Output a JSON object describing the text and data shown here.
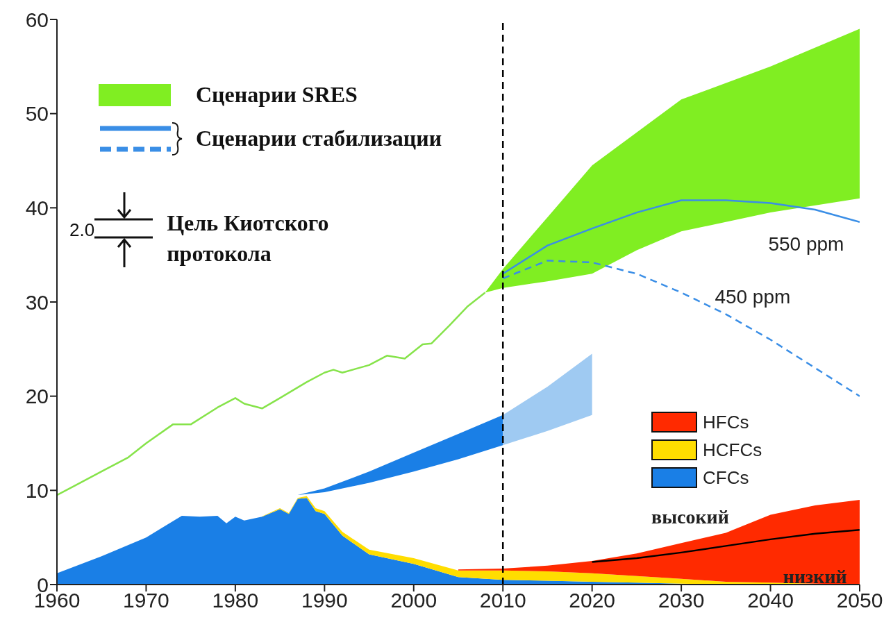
{
  "chart_data": {
    "type": "area",
    "stacked": true,
    "x": [
      1960,
      1965,
      1970,
      1974,
      1976,
      1978,
      1979,
      1980,
      1981,
      1983,
      1985,
      1986,
      1987,
      1988,
      1989,
      1990,
      1992,
      1995,
      2000,
      2005,
      2010,
      2015,
      2020,
      2025,
      2030,
      2035,
      2040,
      2045,
      2050
    ],
    "series": [
      {
        "name": "CFCs",
        "color": "#1a7fe6",
        "values": [
          1.2,
          3,
          5,
          7.3,
          7.2,
          7.3,
          6.5,
          7.2,
          6.8,
          7.2,
          8,
          7.5,
          9.1,
          9.2,
          7.8,
          7.5,
          5.2,
          3.2,
          2.2,
          0.8,
          0.5,
          0.4,
          0.3,
          0.2,
          0.1,
          0,
          0,
          0,
          0
        ]
      },
      {
        "name": "HCFCs",
        "color": "#ffdd00",
        "values": [
          null,
          null,
          null,
          null,
          null,
          null,
          null,
          null,
          null,
          0.05,
          0.1,
          0.1,
          0.1,
          0.2,
          0.3,
          0.3,
          0.4,
          0.5,
          0.6,
          0.7,
          1,
          1,
          0.9,
          0.7,
          0.5,
          0.3,
          0.2,
          0.1,
          0
        ]
      },
      {
        "name": "HFCs",
        "color": "#ff2a00",
        "values": [
          null,
          null,
          null,
          null,
          null,
          null,
          null,
          null,
          null,
          null,
          null,
          null,
          null,
          null,
          null,
          null,
          null,
          null,
          null,
          0.1,
          0.2,
          0.6,
          1.3,
          2.4,
          3.8,
          5.2,
          7.2,
          8.3,
          9
        ]
      },
      {
        "type": "line",
        "color": "#000000",
        "x": [
          2020,
          2025,
          2030,
          2035,
          2040,
          2045,
          2050
        ],
        "values": [
          2.4,
          2.8,
          3.4,
          4.1,
          4.8,
          5.4,
          5.8
        ]
      },
      {
        "type": "line",
        "color": "#86e34a",
        "x": [
          1960,
          1962,
          1965,
          1968,
          1970,
          1973,
          1975,
          1978,
          1980,
          1981,
          1983,
          1985,
          1988,
          1990,
          1991,
          1992,
          1995,
          1997,
          1999,
          2001,
          2002,
          2004,
          2006,
          2008
        ],
        "values": [
          9.5,
          10.5,
          12,
          13.5,
          15,
          17,
          17,
          18.8,
          19.8,
          19.2,
          18.7,
          19.8,
          21.5,
          22.5,
          22.8,
          22.5,
          23.3,
          24.3,
          24,
          25.5,
          25.6,
          27.5,
          29.5,
          31
        ]
      },
      {
        "name": "Сценарии SRES",
        "type": "line",
        "color": "#80ee22",
        "x": [
          2008,
          2010,
          2015,
          2020,
          2025,
          2030,
          2040,
          2050
        ],
        "values": [
          null,
          null,
          null,
          null,
          null,
          null,
          null,
          null
        ],
        "lower": [
          31,
          31.5,
          32.2,
          33,
          35.5,
          37.5,
          39.5,
          41
        ],
        "upper": [
          31,
          33.5,
          39,
          44.5,
          48,
          51.5,
          55,
          59
        ]
      },
      {
        "type": "line",
        "color": "#3a8ee6",
        "line_style": "solid",
        "x": [
          2010,
          2015,
          2020,
          2025,
          2030,
          2035,
          2040,
          2045,
          2050
        ],
        "values": [
          33,
          36,
          37.8,
          39.5,
          40.8,
          40.8,
          40.5,
          39.8,
          38.5
        ]
      },
      {
        "type": "line",
        "color": "#3a8ee6",
        "line_style": "dashed",
        "x": [
          2010,
          2015,
          2020,
          2025,
          2030,
          2035,
          2040,
          2045,
          2050
        ],
        "values": [
          32.5,
          34.4,
          34.2,
          33,
          31,
          28.7,
          26,
          23,
          20
        ]
      },
      {
        "type": "line",
        "color": "#1a7fe6",
        "x": [
          1987,
          1990,
          1995,
          2000,
          2005,
          2010
        ],
        "values": [
          null,
          null,
          null,
          null,
          null,
          null
        ],
        "lower": [
          9.5,
          9.8,
          10.8,
          12,
          13.3,
          14.8
        ],
        "upper": [
          9.5,
          10.2,
          12,
          14,
          16,
          18
        ]
      },
      {
        "type": "line",
        "color": "#9fcaf2",
        "x": [
          2010,
          2015,
          2020
        ],
        "values": [
          null,
          null,
          null
        ],
        "lower": [
          14.8,
          16.3,
          18
        ],
        "upper": [
          18,
          21,
          24.5
        ]
      }
    ],
    "xlim": [
      1960,
      2050
    ],
    "xticks": [
      1960,
      1970,
      1980,
      1990,
      2000,
      2010,
      2020,
      2030,
      2040,
      2050
    ],
    "ylim": [
      0,
      60
    ],
    "yticks": [
      0,
      10,
      20,
      30,
      40,
      50,
      60
    ],
    "ref_lines": [
      {
        "axis": "x",
        "value": 2010,
        "color": "#000000",
        "line_style": "dashed"
      }
    ],
    "legend": "top left",
    "annotations": [
      "Сценарии стабилизации",
      "2.0",
      "Цель Киотского протокола",
      "550 ppm",
      "450 ppm",
      "высокий",
      "низкий"
    ]
  }
}
